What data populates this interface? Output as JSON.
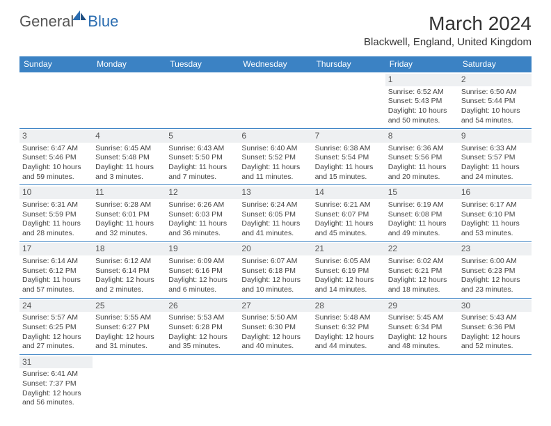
{
  "logo": {
    "general": "General",
    "blue": "Blue"
  },
  "title": "March 2024",
  "location": "Blackwell, England, United Kingdom",
  "colors": {
    "headerBg": "#3b82c4",
    "headerText": "#ffffff",
    "dayNumBg": "#eef0f2",
    "border": "#3b82c4"
  },
  "dayHeaders": [
    "Sunday",
    "Monday",
    "Tuesday",
    "Wednesday",
    "Thursday",
    "Friday",
    "Saturday"
  ],
  "weeks": [
    [
      null,
      null,
      null,
      null,
      null,
      {
        "n": "1",
        "sr": "Sunrise: 6:52 AM",
        "ss": "Sunset: 5:43 PM",
        "dl1": "Daylight: 10 hours",
        "dl2": "and 50 minutes."
      },
      {
        "n": "2",
        "sr": "Sunrise: 6:50 AM",
        "ss": "Sunset: 5:44 PM",
        "dl1": "Daylight: 10 hours",
        "dl2": "and 54 minutes."
      }
    ],
    [
      {
        "n": "3",
        "sr": "Sunrise: 6:47 AM",
        "ss": "Sunset: 5:46 PM",
        "dl1": "Daylight: 10 hours",
        "dl2": "and 59 minutes."
      },
      {
        "n": "4",
        "sr": "Sunrise: 6:45 AM",
        "ss": "Sunset: 5:48 PM",
        "dl1": "Daylight: 11 hours",
        "dl2": "and 3 minutes."
      },
      {
        "n": "5",
        "sr": "Sunrise: 6:43 AM",
        "ss": "Sunset: 5:50 PM",
        "dl1": "Daylight: 11 hours",
        "dl2": "and 7 minutes."
      },
      {
        "n": "6",
        "sr": "Sunrise: 6:40 AM",
        "ss": "Sunset: 5:52 PM",
        "dl1": "Daylight: 11 hours",
        "dl2": "and 11 minutes."
      },
      {
        "n": "7",
        "sr": "Sunrise: 6:38 AM",
        "ss": "Sunset: 5:54 PM",
        "dl1": "Daylight: 11 hours",
        "dl2": "and 15 minutes."
      },
      {
        "n": "8",
        "sr": "Sunrise: 6:36 AM",
        "ss": "Sunset: 5:56 PM",
        "dl1": "Daylight: 11 hours",
        "dl2": "and 20 minutes."
      },
      {
        "n": "9",
        "sr": "Sunrise: 6:33 AM",
        "ss": "Sunset: 5:57 PM",
        "dl1": "Daylight: 11 hours",
        "dl2": "and 24 minutes."
      }
    ],
    [
      {
        "n": "10",
        "sr": "Sunrise: 6:31 AM",
        "ss": "Sunset: 5:59 PM",
        "dl1": "Daylight: 11 hours",
        "dl2": "and 28 minutes."
      },
      {
        "n": "11",
        "sr": "Sunrise: 6:28 AM",
        "ss": "Sunset: 6:01 PM",
        "dl1": "Daylight: 11 hours",
        "dl2": "and 32 minutes."
      },
      {
        "n": "12",
        "sr": "Sunrise: 6:26 AM",
        "ss": "Sunset: 6:03 PM",
        "dl1": "Daylight: 11 hours",
        "dl2": "and 36 minutes."
      },
      {
        "n": "13",
        "sr": "Sunrise: 6:24 AM",
        "ss": "Sunset: 6:05 PM",
        "dl1": "Daylight: 11 hours",
        "dl2": "and 41 minutes."
      },
      {
        "n": "14",
        "sr": "Sunrise: 6:21 AM",
        "ss": "Sunset: 6:07 PM",
        "dl1": "Daylight: 11 hours",
        "dl2": "and 45 minutes."
      },
      {
        "n": "15",
        "sr": "Sunrise: 6:19 AM",
        "ss": "Sunset: 6:08 PM",
        "dl1": "Daylight: 11 hours",
        "dl2": "and 49 minutes."
      },
      {
        "n": "16",
        "sr": "Sunrise: 6:17 AM",
        "ss": "Sunset: 6:10 PM",
        "dl1": "Daylight: 11 hours",
        "dl2": "and 53 minutes."
      }
    ],
    [
      {
        "n": "17",
        "sr": "Sunrise: 6:14 AM",
        "ss": "Sunset: 6:12 PM",
        "dl1": "Daylight: 11 hours",
        "dl2": "and 57 minutes."
      },
      {
        "n": "18",
        "sr": "Sunrise: 6:12 AM",
        "ss": "Sunset: 6:14 PM",
        "dl1": "Daylight: 12 hours",
        "dl2": "and 2 minutes."
      },
      {
        "n": "19",
        "sr": "Sunrise: 6:09 AM",
        "ss": "Sunset: 6:16 PM",
        "dl1": "Daylight: 12 hours",
        "dl2": "and 6 minutes."
      },
      {
        "n": "20",
        "sr": "Sunrise: 6:07 AM",
        "ss": "Sunset: 6:18 PM",
        "dl1": "Daylight: 12 hours",
        "dl2": "and 10 minutes."
      },
      {
        "n": "21",
        "sr": "Sunrise: 6:05 AM",
        "ss": "Sunset: 6:19 PM",
        "dl1": "Daylight: 12 hours",
        "dl2": "and 14 minutes."
      },
      {
        "n": "22",
        "sr": "Sunrise: 6:02 AM",
        "ss": "Sunset: 6:21 PM",
        "dl1": "Daylight: 12 hours",
        "dl2": "and 18 minutes."
      },
      {
        "n": "23",
        "sr": "Sunrise: 6:00 AM",
        "ss": "Sunset: 6:23 PM",
        "dl1": "Daylight: 12 hours",
        "dl2": "and 23 minutes."
      }
    ],
    [
      {
        "n": "24",
        "sr": "Sunrise: 5:57 AM",
        "ss": "Sunset: 6:25 PM",
        "dl1": "Daylight: 12 hours",
        "dl2": "and 27 minutes."
      },
      {
        "n": "25",
        "sr": "Sunrise: 5:55 AM",
        "ss": "Sunset: 6:27 PM",
        "dl1": "Daylight: 12 hours",
        "dl2": "and 31 minutes."
      },
      {
        "n": "26",
        "sr": "Sunrise: 5:53 AM",
        "ss": "Sunset: 6:28 PM",
        "dl1": "Daylight: 12 hours",
        "dl2": "and 35 minutes."
      },
      {
        "n": "27",
        "sr": "Sunrise: 5:50 AM",
        "ss": "Sunset: 6:30 PM",
        "dl1": "Daylight: 12 hours",
        "dl2": "and 40 minutes."
      },
      {
        "n": "28",
        "sr": "Sunrise: 5:48 AM",
        "ss": "Sunset: 6:32 PM",
        "dl1": "Daylight: 12 hours",
        "dl2": "and 44 minutes."
      },
      {
        "n": "29",
        "sr": "Sunrise: 5:45 AM",
        "ss": "Sunset: 6:34 PM",
        "dl1": "Daylight: 12 hours",
        "dl2": "and 48 minutes."
      },
      {
        "n": "30",
        "sr": "Sunrise: 5:43 AM",
        "ss": "Sunset: 6:36 PM",
        "dl1": "Daylight: 12 hours",
        "dl2": "and 52 minutes."
      }
    ],
    [
      {
        "n": "31",
        "sr": "Sunrise: 6:41 AM",
        "ss": "Sunset: 7:37 PM",
        "dl1": "Daylight: 12 hours",
        "dl2": "and 56 minutes."
      },
      null,
      null,
      null,
      null,
      null,
      null
    ]
  ]
}
